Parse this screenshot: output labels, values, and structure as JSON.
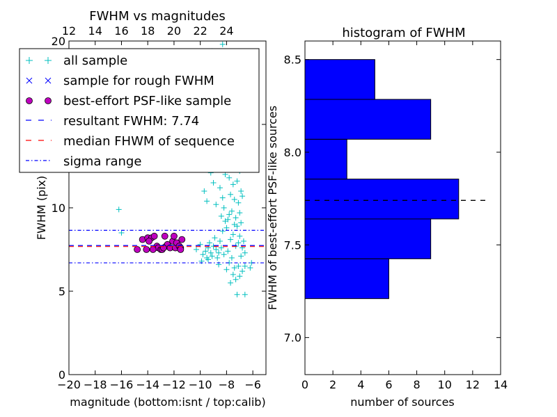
{
  "chart_data": [
    {
      "type": "scatter",
      "title": "FWHM vs magnitudes",
      "xlabel": "magnitude (bottom:isnt / top:calib)",
      "ylabel": "FWHM (pix)",
      "xlim": [
        -20,
        -5
      ],
      "ylim": [
        0,
        20
      ],
      "xticks": [
        -20,
        -18,
        -16,
        -14,
        -12,
        -10,
        -8,
        -6
      ],
      "xtick_labels": [
        "−20",
        "−18",
        "−16",
        "−14",
        "−12",
        "−10",
        "−8",
        "−6"
      ],
      "yticks": [
        0,
        5,
        10,
        15,
        20
      ],
      "ytick_labels": [
        "0",
        "5",
        "10",
        "15",
        "20"
      ],
      "top_axis": {
        "ticks": [
          12,
          14,
          16,
          18,
          20,
          22,
          24
        ],
        "labels": [
          "12",
          "14",
          "16",
          "18",
          "20",
          "22",
          "24"
        ],
        "offset": 32
      },
      "grid": false,
      "legend_position": "top-left",
      "legend": [
        {
          "label": "all sample",
          "marker": "plus",
          "color": "#00bfbf"
        },
        {
          "label": "sample for rough FWHM",
          "marker": "cross",
          "color": "#0000ff"
        },
        {
          "label": "best-effort PSF-like sample",
          "marker": "circle",
          "color": "#bf00bf"
        },
        {
          "label": "resultant FWHM: 7.74",
          "marker": "dashed-line",
          "color": "#0000ff"
        },
        {
          "label": "median FHWM of sequence",
          "marker": "dashed-line",
          "color": "#ff0000"
        },
        {
          "label": "sigma range",
          "marker": "dashdot-line",
          "color": "#0000ff"
        }
      ],
      "lines": {
        "resultant_fwhm": 7.74,
        "median_fwhm": 7.68,
        "sigma_low": 6.7,
        "sigma_high": 8.65,
        "xmin": -20,
        "xmax": -5
      },
      "series": [
        {
          "marker": "plus",
          "color": "#00bfbf",
          "points": [
            [
              -16.2,
              9.9
            ],
            [
              -16.0,
              8.5
            ],
            [
              -10.3,
              7.5
            ],
            [
              -10.0,
              7.8
            ],
            [
              -9.8,
              7.2
            ],
            [
              -9.6,
              7.4
            ],
            [
              -9.5,
              7.0
            ],
            [
              -9.4,
              7.6
            ],
            [
              -9.3,
              7.9
            ],
            [
              -9.2,
              7.3
            ],
            [
              -9.1,
              7.1
            ],
            [
              -9.0,
              7.7
            ],
            [
              -8.9,
              8.2
            ],
            [
              -8.8,
              7.5
            ],
            [
              -8.7,
              7.0
            ],
            [
              -8.6,
              7.3
            ],
            [
              -8.5,
              8.0
            ],
            [
              -8.4,
              7.6
            ],
            [
              -8.3,
              8.6
            ],
            [
              -8.2,
              7.2
            ],
            [
              -8.1,
              9.2
            ],
            [
              -8.0,
              8.8
            ],
            [
              -7.9,
              7.4
            ],
            [
              -7.8,
              9.6
            ],
            [
              -7.7,
              8.1
            ],
            [
              -7.6,
              7.0
            ],
            [
              -7.5,
              8.4
            ],
            [
              -7.4,
              9.0
            ],
            [
              -7.3,
              7.7
            ],
            [
              -7.2,
              8.9
            ],
            [
              -7.1,
              7.9
            ],
            [
              -7.0,
              8.3
            ],
            [
              -6.9,
              7.1
            ],
            [
              -6.8,
              7.6
            ],
            [
              -6.7,
              8.0
            ],
            [
              -6.6,
              7.3
            ],
            [
              -9.7,
              11.0
            ],
            [
              -9.5,
              10.4
            ],
            [
              -9.2,
              12.1
            ],
            [
              -9.0,
              11.5
            ],
            [
              -8.8,
              10.2
            ],
            [
              -8.6,
              12.6
            ],
            [
              -8.5,
              11.2
            ],
            [
              -8.3,
              10.6
            ],
            [
              -8.1,
              12.0
            ],
            [
              -8.0,
              13.2
            ],
            [
              -7.8,
              11.8
            ],
            [
              -7.7,
              10.8
            ],
            [
              -7.6,
              12.4
            ],
            [
              -7.5,
              11.4
            ],
            [
              -7.4,
              10.5
            ],
            [
              -7.3,
              12.8
            ],
            [
              -7.2,
              11.6
            ],
            [
              -7.1,
              10.3
            ],
            [
              -7.0,
              12.2
            ],
            [
              -6.9,
              11.0
            ],
            [
              -6.8,
              10.7
            ],
            [
              -8.4,
              9.5
            ],
            [
              -8.2,
              10.0
            ],
            [
              -7.9,
              9.3
            ],
            [
              -7.6,
              9.8
            ],
            [
              -7.3,
              9.4
            ],
            [
              -7.0,
              9.7
            ],
            [
              -6.9,
              9.1
            ],
            [
              -8.7,
              14.1
            ],
            [
              -8.2,
              14.8
            ],
            [
              -7.6,
              15.5
            ],
            [
              -7.3,
              14.5
            ],
            [
              -6.9,
              13.8
            ],
            [
              -8.6,
              16.3
            ],
            [
              -7.9,
              17.2
            ],
            [
              -9.4,
              18.6
            ],
            [
              -9.1,
              19.4
            ],
            [
              -8.3,
              19.8
            ],
            [
              -8.0,
              19.1
            ],
            [
              -7.4,
              18.2
            ],
            [
              -9.9,
              6.8
            ],
            [
              -9.4,
              6.9
            ],
            [
              -8.6,
              6.6
            ],
            [
              -8.0,
              6.3
            ],
            [
              -7.8,
              6.7
            ],
            [
              -7.5,
              6.0
            ],
            [
              -7.3,
              5.7
            ],
            [
              -7.1,
              6.5
            ],
            [
              -7.0,
              5.9
            ],
            [
              -6.8,
              6.2
            ],
            [
              -6.6,
              6.5
            ],
            [
              -6.2,
              6.4
            ],
            [
              -7.7,
              5.5
            ],
            [
              -6.6,
              4.8
            ],
            [
              -7.2,
              4.8
            ],
            [
              -7.4,
              6.4
            ],
            [
              -6.1,
              6.7
            ]
          ]
        },
        {
          "marker": "circle",
          "color": "#bf00bf",
          "points": [
            [
              -14.8,
              7.5
            ],
            [
              -14.4,
              8.1
            ],
            [
              -14.1,
              7.5
            ],
            [
              -14.0,
              8.2
            ],
            [
              -13.7,
              8.2
            ],
            [
              -13.5,
              8.3
            ],
            [
              -13.3,
              7.7
            ],
            [
              -13.2,
              7.6
            ],
            [
              -13.0,
              7.5
            ],
            [
              -12.9,
              7.5
            ],
            [
              -12.7,
              8.3
            ],
            [
              -12.6,
              7.7
            ],
            [
              -12.5,
              7.8
            ],
            [
              -12.3,
              7.6
            ],
            [
              -12.1,
              8.0
            ],
            [
              -12.0,
              8.3
            ],
            [
              -11.9,
              7.6
            ],
            [
              -11.8,
              7.9
            ],
            [
              -11.6,
              7.7
            ],
            [
              -11.5,
              7.6
            ],
            [
              -11.4,
              8.1
            ],
            [
              -11.5,
              7.5
            ],
            [
              -12.8,
              7.6
            ],
            [
              -13.6,
              7.5
            ],
            [
              -13.9,
              8.0
            ]
          ]
        }
      ]
    },
    {
      "type": "bar",
      "orientation": "horizontal",
      "title": "histogram of FWHM",
      "xlabel": "number of sources",
      "ylabel": "FWHM of best-effort PSF-like sources",
      "xlim": [
        0,
        14
      ],
      "ylim": [
        6.8,
        8.6
      ],
      "xticks": [
        0,
        2,
        4,
        6,
        8,
        10,
        12,
        14
      ],
      "yticks": [
        7.0,
        7.5,
        8.0,
        8.5
      ],
      "ytick_labels": [
        "7.0",
        "7.5",
        "8.0",
        "8.5"
      ],
      "bin_edges": [
        7.21,
        7.425,
        7.64,
        7.855,
        8.07,
        8.285,
        8.5
      ],
      "values": [
        6,
        9,
        11,
        3,
        9,
        5
      ],
      "bar_color": "#0000ff",
      "marker_line": {
        "y": 7.74,
        "xmax": 13,
        "style": "dashed",
        "color": "#000000"
      },
      "grid": false
    }
  ]
}
